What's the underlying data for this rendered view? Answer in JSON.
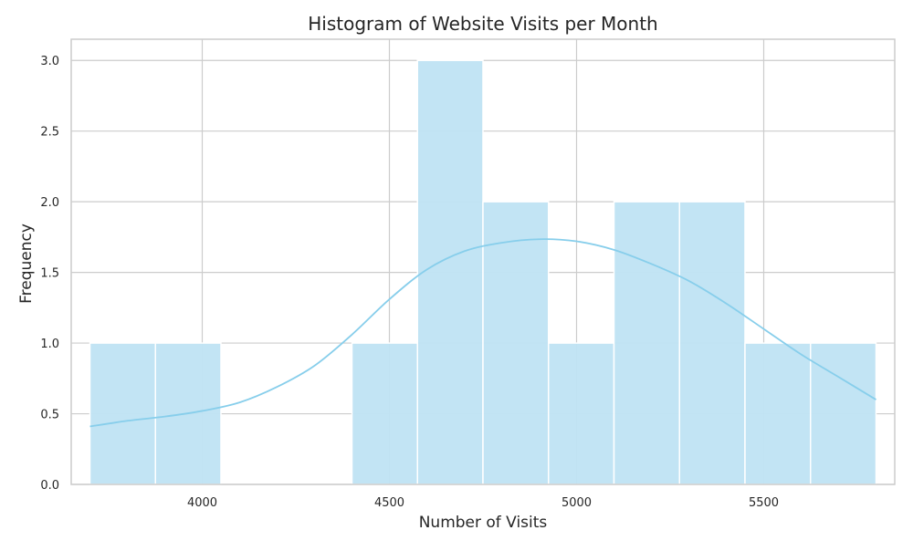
{
  "chart_data": {
    "type": "bar",
    "title": "Histogram of Website Visits per Month",
    "xlabel": "Number of Visits",
    "ylabel": "Frequency",
    "xlim": [
      3650,
      5850
    ],
    "ylim": [
      0,
      3.15
    ],
    "bins": [
      {
        "start": 3700,
        "end": 3875,
        "count": 1
      },
      {
        "start": 3875,
        "end": 4050,
        "count": 1
      },
      {
        "start": 4050,
        "end": 4225,
        "count": 0
      },
      {
        "start": 4225,
        "end": 4400,
        "count": 0
      },
      {
        "start": 4400,
        "end": 4575,
        "count": 1
      },
      {
        "start": 4575,
        "end": 4750,
        "count": 3
      },
      {
        "start": 4750,
        "end": 4925,
        "count": 2
      },
      {
        "start": 4925,
        "end": 5100,
        "count": 1
      },
      {
        "start": 5100,
        "end": 5275,
        "count": 2
      },
      {
        "start": 5275,
        "end": 5450,
        "count": 2
      },
      {
        "start": 5450,
        "end": 5625,
        "count": 1
      },
      {
        "start": 5625,
        "end": 5800,
        "count": 1
      }
    ],
    "kde": {
      "x": [
        3700,
        3800,
        3900,
        4000,
        4100,
        4200,
        4300,
        4400,
        4500,
        4600,
        4700,
        4800,
        4900,
        5000,
        5100,
        5200,
        5300,
        5400,
        5500,
        5600,
        5700,
        5800
      ],
      "y": [
        0.41,
        0.45,
        0.48,
        0.52,
        0.58,
        0.69,
        0.84,
        1.06,
        1.31,
        1.52,
        1.65,
        1.71,
        1.735,
        1.72,
        1.66,
        1.56,
        1.44,
        1.28,
        1.1,
        0.92,
        0.76,
        0.6
      ]
    },
    "xticks": [
      4000,
      4500,
      5000,
      5500
    ],
    "xtick_labels": [
      "4000",
      "4500",
      "5000",
      "5500"
    ],
    "yticks": [
      0.0,
      0.5,
      1.0,
      1.5,
      2.0,
      2.5,
      3.0
    ],
    "ytick_labels": [
      "0.0",
      "0.5",
      "1.0",
      "1.5",
      "2.0",
      "2.5",
      "3.0"
    ],
    "grid": true,
    "legend": "none",
    "colors": {
      "bar_fill": "#bfe3f3",
      "bar_edge": "#ffffff",
      "kde_line": "#87ceeb",
      "grid": "#cccccc",
      "spine": "#cccccc"
    }
  }
}
